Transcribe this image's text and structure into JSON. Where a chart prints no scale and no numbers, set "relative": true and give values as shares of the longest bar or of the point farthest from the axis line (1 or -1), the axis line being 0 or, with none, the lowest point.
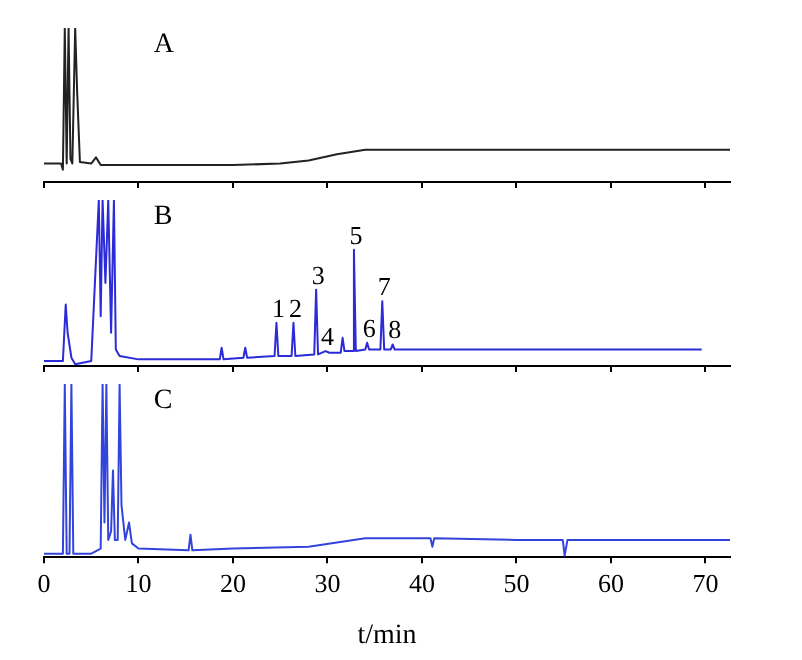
{
  "chart_data": [
    {
      "type": "line",
      "relative": true,
      "title": "A",
      "marker": "none",
      "tick_labels": false,
      "xlim": [
        0,
        72.6
      ],
      "xticks": [
        0,
        10,
        20,
        30,
        40,
        50,
        60,
        70
      ],
      "x": [
        0,
        1.8,
        2.0,
        2.2,
        2.4,
        2.6,
        2.8,
        3.0,
        3.3,
        3.5,
        3.8,
        5.0,
        5.5,
        6.0,
        10,
        20,
        25,
        28,
        31,
        34,
        40,
        50,
        60,
        72.6
      ],
      "series": [
        {
          "color": "#222222",
          "values": [
            0.12,
            0.12,
            0.08,
            1,
            0.12,
            1,
            0.15,
            0.12,
            1,
            0.6,
            0.13,
            0.12,
            0.16,
            0.11,
            0.11,
            0.11,
            0.12,
            0.14,
            0.18,
            0.21,
            0.21,
            0.21,
            0.21,
            0.21
          ]
        }
      ]
    },
    {
      "type": "line",
      "relative": true,
      "title": "B",
      "marker": "none",
      "tick_labels": false,
      "xlim": [
        0,
        72.6
      ],
      "xticks": [
        0,
        10,
        20,
        30,
        40,
        50,
        60,
        70
      ],
      "x": [
        0,
        2.0,
        2.3,
        2.5,
        2.9,
        3.3,
        5.0,
        5.8,
        6.0,
        6.2,
        6.5,
        6.8,
        7.1,
        7.4,
        7.6,
        8.0,
        10,
        18.6,
        18.8,
        19.0,
        21.1,
        21.3,
        21.5,
        24.4,
        24.6,
        24.8,
        26.2,
        26.4,
        26.6,
        28.6,
        28.8,
        29.0,
        29.8,
        30.2,
        31.4,
        31.6,
        31.8,
        32.6,
        32.8,
        33.0,
        34.0,
        34.2,
        34.4,
        35.6,
        35.8,
        36.0,
        36.7,
        36.9,
        37.1,
        40,
        50,
        60,
        69.6
      ],
      "series": [
        {
          "color": "#2b2bd8",
          "values": [
            0.03,
            0.03,
            0.37,
            0.2,
            0.05,
            0.01,
            0.03,
            1,
            0.3,
            1,
            0.5,
            1,
            0.2,
            1,
            0.1,
            0.06,
            0.04,
            0.04,
            0.11,
            0.04,
            0.05,
            0.11,
            0.05,
            0.06,
            0.26,
            0.06,
            0.06,
            0.26,
            0.06,
            0.07,
            0.46,
            0.07,
            0.09,
            0.08,
            0.08,
            0.17,
            0.09,
            0.09,
            0.7,
            0.09,
            0.1,
            0.14,
            0.1,
            0.1,
            0.39,
            0.1,
            0.1,
            0.13,
            0.1,
            0.1,
            0.1,
            0.1,
            0.1
          ]
        }
      ],
      "annotations": [
        {
          "text": "1",
          "x": 24.6,
          "y": 0.26
        },
        {
          "text": "2",
          "x": 26.4,
          "y": 0.26
        },
        {
          "text": "3",
          "x": 28.8,
          "y": 0.46
        },
        {
          "text": "4",
          "x": 29.8,
          "y": 0.09
        },
        {
          "text": "5",
          "x": 32.8,
          "y": 0.7
        },
        {
          "text": "6",
          "x": 34.2,
          "y": 0.14
        },
        {
          "text": "7",
          "x": 35.8,
          "y": 0.39
        },
        {
          "text": "8",
          "x": 36.9,
          "y": 0.13
        }
      ]
    },
    {
      "type": "line",
      "relative": true,
      "title": "C",
      "marker": "none",
      "tick_labels": "x",
      "xlabel": "t/min",
      "xlim": [
        0,
        72.6
      ],
      "xticks": [
        0,
        10,
        20,
        30,
        40,
        50,
        60,
        70
      ],
      "x": [
        0,
        2.0,
        2.2,
        2.4,
        2.7,
        2.9,
        3.1,
        5,
        6.0,
        6.2,
        6.4,
        6.6,
        6.8,
        7.1,
        7.3,
        7.5,
        7.8,
        8.0,
        8.2,
        8.6,
        9.0,
        9.3,
        10,
        15.3,
        15.5,
        15.7,
        20,
        28,
        34,
        40.9,
        41.1,
        41.3,
        50,
        54.9,
        55.1,
        55.4,
        60,
        72.6
      ],
      "series": [
        {
          "color": "#3344dd",
          "values": [
            0.02,
            0.02,
            1,
            0.02,
            0.02,
            1,
            0.02,
            0.02,
            0.05,
            1,
            0.2,
            1,
            0.1,
            0.15,
            0.5,
            0.1,
            0.1,
            1,
            0.3,
            0.1,
            0.2,
            0.08,
            0.05,
            0.04,
            0.13,
            0.04,
            0.05,
            0.06,
            0.11,
            0.11,
            0.06,
            0.11,
            0.1,
            0.1,
            0.01,
            0.1,
            0.1,
            0.1
          ]
        }
      ]
    }
  ]
}
